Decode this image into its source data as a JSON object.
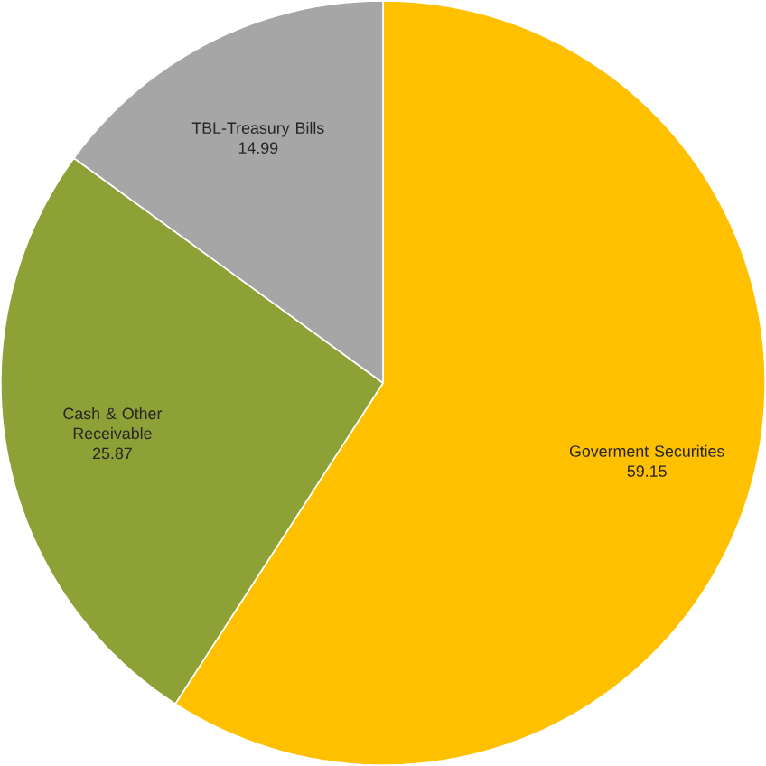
{
  "chart_data": {
    "type": "pie",
    "categories": [
      "Goverment Securities",
      "Cash & Other Receivable",
      "TBL-Treasury Bills"
    ],
    "values": [
      59.15,
      25.87,
      14.99
    ],
    "colors": [
      "#ffc000",
      "#8ea136",
      "#a6a6a6"
    ],
    "data_labels": true
  }
}
